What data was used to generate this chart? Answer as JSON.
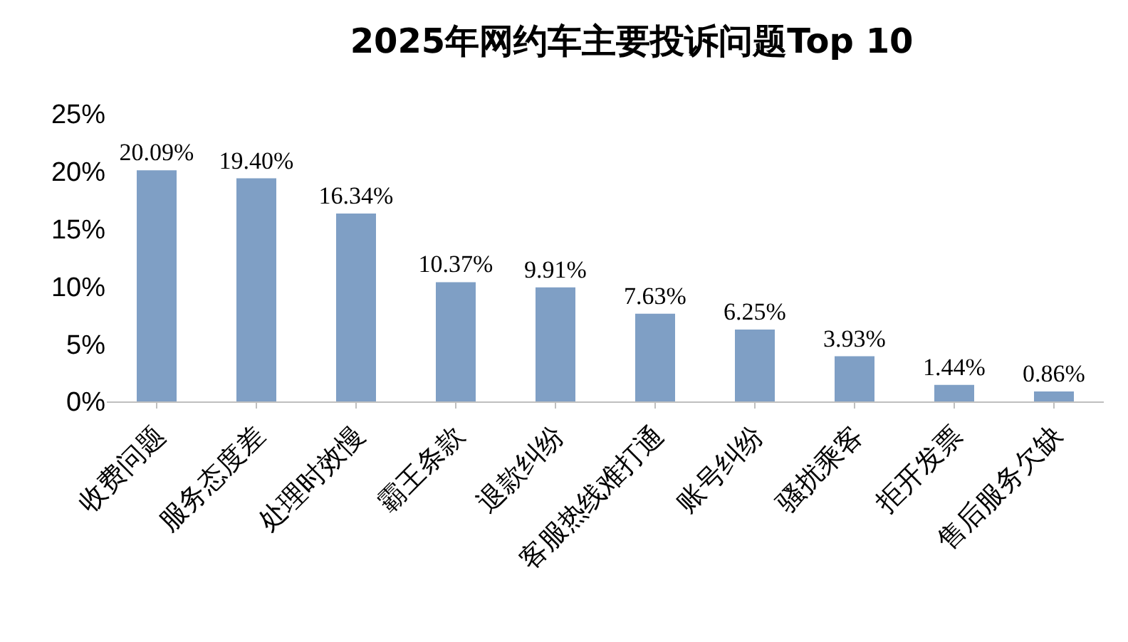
{
  "chart_data": {
    "type": "bar",
    "title": "2025年网约车主要投诉问题Top 10",
    "categories": [
      "收费问题",
      "服务态度差",
      "处理时效慢",
      "霸王条款",
      "退款纠纷",
      "客服热线难打通",
      "账号纠纷",
      "骚扰乘客",
      "拒开发票",
      "售后服务欠缺"
    ],
    "values": [
      20.09,
      19.4,
      16.34,
      10.37,
      9.91,
      7.63,
      6.25,
      3.93,
      1.44,
      0.86
    ],
    "value_labels": [
      "20.09%",
      "19.40%",
      "16.34%",
      "10.37%",
      "9.91%",
      "7.63%",
      "6.25%",
      "3.93%",
      "1.44%",
      "0.86%"
    ],
    "color": "#7f9fc5",
    "ylim": [
      0,
      25
    ],
    "yticks": [
      {
        "value": 0,
        "label": "0%"
      },
      {
        "value": 5,
        "label": "5%"
      },
      {
        "value": 10,
        "label": "10%"
      },
      {
        "value": 15,
        "label": "15%"
      },
      {
        "value": 20,
        "label": "20%"
      },
      {
        "value": 25,
        "label": "25%"
      }
    ],
    "legend": false
  }
}
